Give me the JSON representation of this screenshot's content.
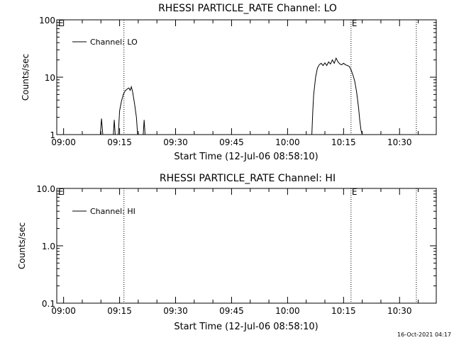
{
  "footer_timestamp": "16-Oct-2021 04:17",
  "chart_data": [
    {
      "type": "line",
      "title": "RHESSI PARTICLE_RATE Channel: LO",
      "xlabel": "Start Time (12-Jul-06 08:58:10)",
      "ylabel": "Counts/sec",
      "yscale": "log",
      "ylim": [
        1,
        100
      ],
      "yticks": [
        1,
        10,
        100
      ],
      "ytick_labels": [
        "1",
        "10",
        "100"
      ],
      "xlim": [
        "08:58:10",
        "10:39:50"
      ],
      "xticks": [
        "09:00",
        "09:15",
        "09:30",
        "09:45",
        "10:00",
        "10:15",
        "10:30"
      ],
      "legend": "top-left",
      "grid": false,
      "markers": [
        {
          "time": "09:16:10",
          "label": ""
        },
        {
          "time": "10:17:00",
          "label": "E"
        },
        {
          "time": "10:34:30",
          "label": ""
        }
      ],
      "edge_label": "E",
      "series": [
        {
          "name": "Channel: LO",
          "points": [
            [
              "09:09:50",
              1
            ],
            [
              "09:10:10",
              1.9
            ],
            [
              "09:10:30",
              1
            ],
            [
              "09:13:20",
              1
            ],
            [
              "09:13:35",
              1.8
            ],
            [
              "09:13:50",
              1
            ],
            [
              "09:14:40",
              1
            ],
            [
              "09:15:00",
              2.6
            ],
            [
              "09:15:30",
              3.8
            ],
            [
              "09:16:00",
              5.0
            ],
            [
              "09:16:30",
              5.8
            ],
            [
              "09:17:00",
              6.2
            ],
            [
              "09:17:30",
              6.5
            ],
            [
              "09:17:50",
              5.9
            ],
            [
              "09:18:10",
              6.8
            ],
            [
              "09:18:30",
              5.5
            ],
            [
              "09:19:00",
              3.5
            ],
            [
              "09:19:30",
              2.0
            ],
            [
              "09:19:50",
              1
            ],
            [
              "09:21:20",
              1
            ],
            [
              "09:21:35",
              1.8
            ],
            [
              "09:21:50",
              1
            ],
            [
              "10:06:30",
              1
            ],
            [
              "10:06:45",
              2.5
            ],
            [
              "10:07:00",
              5.0
            ],
            [
              "10:07:30",
              10.0
            ],
            [
              "10:08:00",
              14.5
            ],
            [
              "10:08:30",
              16.5
            ],
            [
              "10:09:00",
              17.5
            ],
            [
              "10:09:30",
              16.0
            ],
            [
              "10:10:00",
              17.8
            ],
            [
              "10:10:30",
              16.0
            ],
            [
              "10:11:00",
              18.5
            ],
            [
              "10:11:30",
              17.0
            ],
            [
              "10:12:00",
              20.0
            ],
            [
              "10:12:30",
              17.5
            ],
            [
              "10:13:00",
              21.5
            ],
            [
              "10:13:30",
              18.5
            ],
            [
              "10:14:00",
              17.0
            ],
            [
              "10:14:30",
              16.5
            ],
            [
              "10:15:00",
              17.5
            ],
            [
              "10:15:30",
              16.5
            ],
            [
              "10:16:00",
              16.0
            ],
            [
              "10:16:30",
              15.5
            ],
            [
              "10:17:00",
              13.5
            ],
            [
              "10:17:30",
              11.0
            ],
            [
              "10:18:00",
              8.5
            ],
            [
              "10:18:30",
              5.5
            ],
            [
              "10:19:00",
              3.0
            ],
            [
              "10:19:20",
              1.8
            ],
            [
              "10:19:40",
              1.2
            ],
            [
              "10:20:00",
              1
            ]
          ]
        }
      ]
    },
    {
      "type": "line",
      "title": "RHESSI PARTICLE_RATE Channel: HI",
      "xlabel": "Start Time (12-Jul-06 08:58:10)",
      "ylabel": "Counts/sec",
      "yscale": "log",
      "ylim": [
        0.1,
        10
      ],
      "yticks": [
        0.1,
        1,
        10
      ],
      "ytick_labels": [
        "0.1",
        "1.0",
        "10.0"
      ],
      "xlim": [
        "08:58:10",
        "10:39:50"
      ],
      "xticks": [
        "09:00",
        "09:15",
        "09:30",
        "09:45",
        "10:00",
        "10:15",
        "10:30"
      ],
      "legend": "top-left",
      "grid": false,
      "markers": [
        {
          "time": "09:16:10",
          "label": ""
        },
        {
          "time": "10:17:00",
          "label": "E"
        },
        {
          "time": "10:34:30",
          "label": ""
        }
      ],
      "edge_label": "E",
      "series": [
        {
          "name": "Channel: HI",
          "points": []
        }
      ]
    }
  ]
}
